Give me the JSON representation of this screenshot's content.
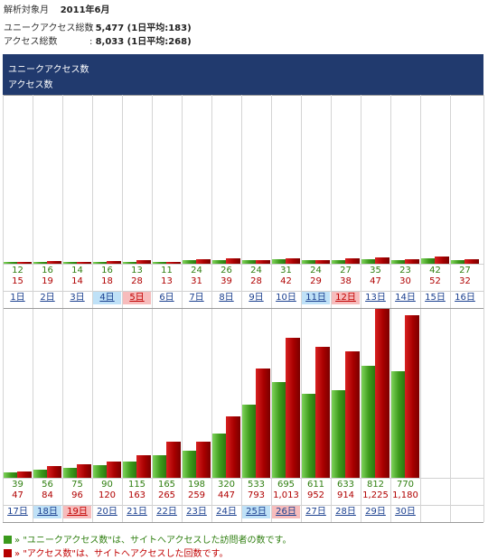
{
  "period": {
    "label": "解析対象月",
    "value": "2011年6月"
  },
  "summary": [
    {
      "label": "ユニークアクセス総数",
      "value": "5,477 (1日平均:183)"
    },
    {
      "label": "アクセス総数",
      "value": "8,033 (1日平均:268)"
    }
  ],
  "legend": {
    "unique": "ユニークアクセス数",
    "access": "アクセス数"
  },
  "colors": {
    "unique": "#3e9b1c",
    "access": "#a80000",
    "header": "#213a6e",
    "saturday": "#bfe1f7",
    "sunday": "#f7bcbc"
  },
  "footnotes": [
    {
      "arrow": "»",
      "name": "\"ユニークアクセス数\"",
      "text": "は、サイトへアクセスした訪問者の数です。"
    },
    {
      "arrow": "»",
      "name": "\"アクセス数\"",
      "text": "は、サイトへアクセスした回数です。"
    }
  ],
  "chart_data": {
    "type": "bar",
    "series": [
      {
        "name": "ユニークアクセス数",
        "values": [
          12,
          16,
          14,
          16,
          13,
          11,
          24,
          26,
          24,
          31,
          24,
          27,
          35,
          23,
          42,
          27,
          39,
          56,
          75,
          90,
          115,
          165,
          198,
          320,
          533,
          695,
          611,
          633,
          812,
          770
        ]
      },
      {
        "name": "アクセス数",
        "values": [
          15,
          19,
          14,
          18,
          28,
          13,
          31,
          39,
          28,
          42,
          29,
          38,
          47,
          30,
          52,
          32,
          47,
          84,
          96,
          120,
          163,
          265,
          259,
          447,
          793,
          1013,
          952,
          914,
          1225,
          1180
        ]
      }
    ],
    "panels": [
      {
        "categories": [
          "1日",
          "2日",
          "3日",
          "4日",
          "5日",
          "6日",
          "7日",
          "8日",
          "9日",
          "10日",
          "11日",
          "12日",
          "13日",
          "14日",
          "15日",
          "16日"
        ],
        "day_types": [
          "",
          "",
          "",
          "sat",
          "sun",
          "",
          "",
          "",
          "",
          "",
          "sat",
          "sun",
          "",
          "",
          "",
          ""
        ],
        "unique_labels": [
          "12",
          "16",
          "14",
          "16",
          "13",
          "11",
          "24",
          "26",
          "24",
          "31",
          "24",
          "27",
          "35",
          "23",
          "42",
          "27"
        ],
        "access_labels": [
          "15",
          "19",
          "14",
          "18",
          "28",
          "13",
          "31",
          "39",
          "28",
          "42",
          "29",
          "38",
          "47",
          "30",
          "52",
          "32"
        ]
      },
      {
        "categories": [
          "17日",
          "18日",
          "19日",
          "20日",
          "21日",
          "22日",
          "23日",
          "24日",
          "25日",
          "26日",
          "27日",
          "28日",
          "29日",
          "30日"
        ],
        "day_types": [
          "",
          "sat",
          "sun",
          "",
          "",
          "",
          "",
          "",
          "sat",
          "sun",
          "",
          "",
          "",
          ""
        ],
        "unique_labels": [
          "39",
          "56",
          "75",
          "90",
          "115",
          "165",
          "198",
          "320",
          "533",
          "695",
          "611",
          "633",
          "812",
          "770"
        ],
        "access_labels": [
          "47",
          "84",
          "96",
          "120",
          "163",
          "265",
          "259",
          "447",
          "793",
          "1,013",
          "952",
          "914",
          "1,225",
          "1,180"
        ]
      }
    ],
    "ylim": [
      0,
      1225
    ]
  }
}
